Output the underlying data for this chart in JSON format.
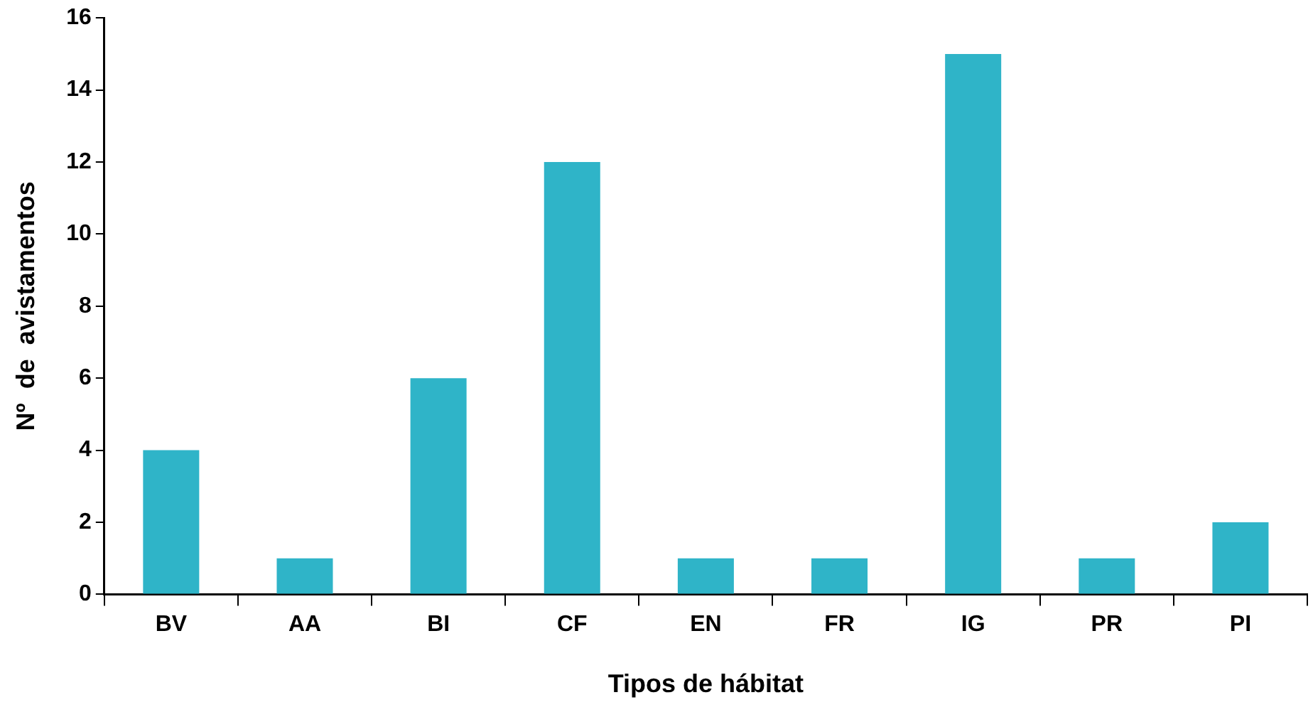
{
  "chart_data": {
    "type": "bar",
    "xlabel": "Tipos de hábitat",
    "ylabel": "Nº  de  avistamentos",
    "categories": [
      "BV",
      "AA",
      "BI",
      "CF",
      "EN",
      "FR",
      "IG",
      "PR",
      "PI"
    ],
    "values": [
      4,
      1,
      6,
      12,
      1,
      1,
      15,
      1,
      2
    ],
    "color": "#2fb4c8",
    "ylim": [
      0,
      16
    ],
    "yticks": [
      0,
      2,
      4,
      6,
      8,
      10,
      12,
      14,
      16
    ],
    "grid": false,
    "legend": false
  }
}
